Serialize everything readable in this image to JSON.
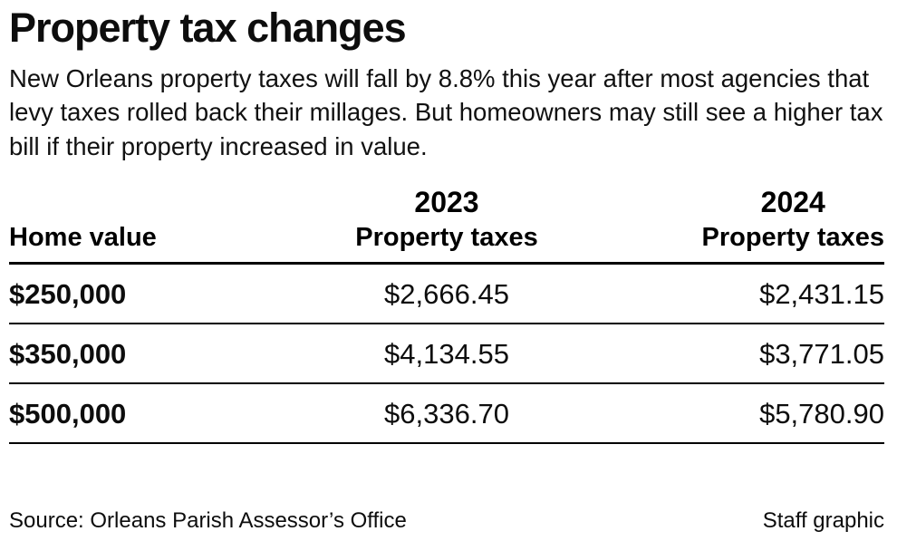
{
  "title": "Property tax changes",
  "subtitle": "New Orleans property taxes will fall by 8.8% this year after most agencies that levy taxes rolled back their millages. But homeowners may still see a higher tax bill if their property increased in value.",
  "table": {
    "home_header": "Home value",
    "col_2023": {
      "year": "2023",
      "label": "Property taxes"
    },
    "col_2024": {
      "year": "2024",
      "label": "Property taxes"
    }
  },
  "chart_data": {
    "type": "table",
    "title": "Property tax changes",
    "columns": [
      "Home value",
      "2023 Property taxes",
      "2024 Property taxes"
    ],
    "rows": [
      {
        "home": "$250,000",
        "taxes_2023": "$2,666.45",
        "taxes_2024": "$2,431.15"
      },
      {
        "home": "$350,000",
        "taxes_2023": "$4,134.55",
        "taxes_2024": "$3,771.05"
      },
      {
        "home": "$500,000",
        "taxes_2023": "$6,336.70",
        "taxes_2024": "$5,780.90"
      }
    ]
  },
  "footer": {
    "source": "Source: Orleans Parish Assessor’s Office",
    "credit": "Staff graphic"
  }
}
